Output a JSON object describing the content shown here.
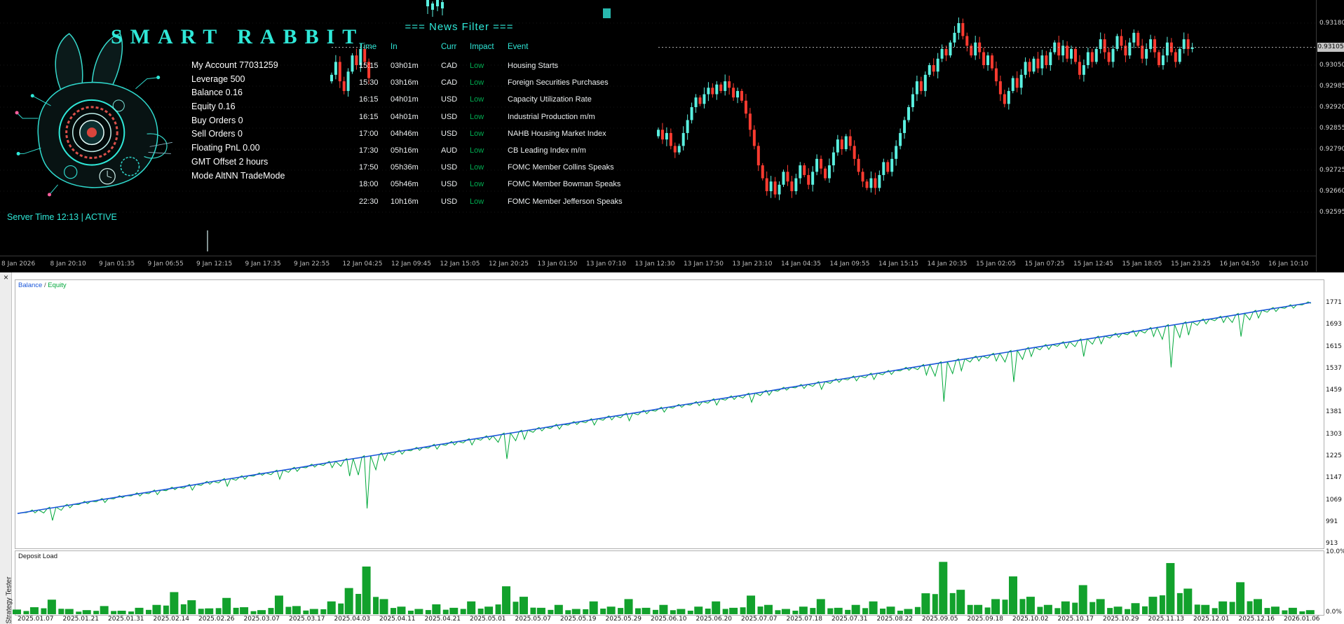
{
  "terminal": {
    "title": "SMART RABBIT",
    "server_line": "Server Time 12:13 | ACTIVE",
    "account_lines": [
      "My Account 77031259",
      "Leverage 500",
      "Balance 0.16",
      "Equity 0.16",
      "Buy Orders 0",
      "Sell Orders 0",
      "Floating PnL 0.00",
      "GMT Offset 2 hours",
      "Mode AltNN TradeMode"
    ],
    "news": {
      "header": "=== News Filter ===",
      "columns": [
        "Time",
        "In",
        "Curr",
        "Impact",
        "Event"
      ],
      "rows": [
        [
          "15:15",
          "03h01m",
          "CAD",
          "Low",
          "Housing Starts"
        ],
        [
          "15:30",
          "03h16m",
          "CAD",
          "Low",
          "Foreign Securities Purchases"
        ],
        [
          "16:15",
          "04h01m",
          "USD",
          "Low",
          "Capacity Utilization Rate"
        ],
        [
          "16:15",
          "04h01m",
          "USD",
          "Low",
          "Industrial Production m/m"
        ],
        [
          "17:00",
          "04h46m",
          "USD",
          "Low",
          "NAHB Housing Market Index"
        ],
        [
          "17:30",
          "05h16m",
          "AUD",
          "Low",
          "CB Leading Index m/m"
        ],
        [
          "17:50",
          "05h36m",
          "USD",
          "Low",
          "FOMC Member Collins Speaks"
        ],
        [
          "18:00",
          "05h46m",
          "USD",
          "Low",
          "FOMC Member Bowman Speaks"
        ],
        [
          "22:30",
          "10h16m",
          "USD",
          "Low",
          "FOMC Member Jefferson Speaks"
        ]
      ]
    }
  },
  "tester": {
    "legend": {
      "balance": "Balance",
      "separator": " / ",
      "equity": "Equity"
    },
    "deposit_label": "Deposit Load",
    "deposit_axis": [
      "10.0%",
      "0.0%"
    ],
    "tab_label": "Strategy Tester",
    "close_label": "×"
  },
  "colors": {
    "accent": "#2fe8d8",
    "news_impact_low": "#00a94f",
    "candle_up": "#5af0e0",
    "candle_down": "#ff3b30",
    "balance_line": "#1b57d9",
    "equity_line": "#00a83a",
    "deposit_bar": "#12a12c",
    "current_price_bg": "#c4c4c4"
  },
  "chart_data": [
    {
      "type": "candlestick",
      "price_top": 0.9318,
      "price_step": 0.00065,
      "price_axis_labels": [
        "0.93180",
        "0.93050",
        "0.92985",
        "0.92920",
        "0.92855",
        "0.92790",
        "0.92725",
        "0.92660",
        "0.92595"
      ],
      "current_price": "0.93105",
      "time_axis_labels": [
        "8 Jan 2026",
        "8 Jan 20:10",
        "9 Jan 01:35",
        "9 Jan 06:55",
        "9 Jan 12:15",
        "9 Jan 17:35",
        "9 Jan 22:55",
        "12 Jan 04:25",
        "12 Jan 09:45",
        "12 Jan 15:05",
        "12 Jan 20:25",
        "13 Jan 01:50",
        "13 Jan 07:10",
        "13 Jan 12:30",
        "13 Jan 17:50",
        "13 Jan 23:10",
        "14 Jan 04:35",
        "14 Jan 09:55",
        "14 Jan 15:15",
        "14 Jan 20:35",
        "15 Jan 02:05",
        "15 Jan 07:25",
        "15 Jan 12:45",
        "15 Jan 18:05",
        "15 Jan 23:25",
        "16 Jan 04:50",
        "16 Jan 10:10"
      ],
      "closes": [
        0.9285,
        0.9282,
        0.9284,
        0.928,
        0.9278,
        0.928,
        0.9284,
        0.9288,
        0.9292,
        0.9295,
        0.9293,
        0.9296,
        0.9298,
        0.9296,
        0.9299,
        0.9297,
        0.93,
        0.9298,
        0.9295,
        0.9297,
        0.9294,
        0.929,
        0.9285,
        0.928,
        0.9274,
        0.927,
        0.9266,
        0.9269,
        0.9265,
        0.9268,
        0.9272,
        0.9269,
        0.9266,
        0.927,
        0.9274,
        0.9271,
        0.9268,
        0.9272,
        0.9276,
        0.9273,
        0.927,
        0.9274,
        0.9278,
        0.9282,
        0.9279,
        0.9283,
        0.928,
        0.9276,
        0.9272,
        0.9269,
        0.9267,
        0.927,
        0.9267,
        0.9271,
        0.9275,
        0.9272,
        0.9276,
        0.928,
        0.9284,
        0.9288,
        0.9292,
        0.9296,
        0.93,
        0.9297,
        0.9302,
        0.9305,
        0.9303,
        0.9307,
        0.931,
        0.9308,
        0.9312,
        0.9315,
        0.9318,
        0.9314,
        0.9311,
        0.9308,
        0.9312,
        0.9309,
        0.9305,
        0.9308,
        0.9304,
        0.93,
        0.9296,
        0.9293,
        0.9297,
        0.9301,
        0.9298,
        0.9302,
        0.9306,
        0.9303,
        0.9307,
        0.9304,
        0.9308,
        0.9305,
        0.9309,
        0.9312,
        0.9308,
        0.9311,
        0.9307,
        0.931,
        0.9306,
        0.9302,
        0.9305,
        0.9309,
        0.9306,
        0.931,
        0.9313,
        0.9309,
        0.9306,
        0.931,
        0.9314,
        0.9311,
        0.9308,
        0.9312,
        0.9315,
        0.9311,
        0.9307,
        0.931,
        0.9313,
        0.9309,
        0.9305,
        0.9308,
        0.9312,
        0.9309,
        0.9306,
        0.931,
        0.9313,
        0.931,
        0.93105
      ],
      "ghost_closes": [
        0.9302,
        0.9306,
        0.93,
        0.9297,
        0.9303,
        0.9308,
        0.9305,
        0.931,
        0.9306,
        0.9301
      ]
    },
    {
      "type": "line",
      "title": "Balance / Equity",
      "y_ticks": [
        1771,
        1693,
        1615,
        1537,
        1459,
        1381,
        1303,
        1225,
        1147,
        1069,
        991,
        913
      ],
      "x_tick_labels": [
        "2025.01.07",
        "2025.01.21",
        "2025.01.31",
        "2025.02.14",
        "2025.02.26",
        "2025.03.07",
        "2025.03.17",
        "2025.04.03",
        "2025.04.11",
        "2025.04.21",
        "2025.05.01",
        "2025.05.07",
        "2025.05.19",
        "2025.05.29",
        "2025.06.10",
        "2025.06.20",
        "2025.07.07",
        "2025.07.18",
        "2025.07.31",
        "2025.08.22",
        "2025.09.05",
        "2025.09.18",
        "2025.10.02",
        "2025.10.17",
        "2025.10.29",
        "2025.11.13",
        "2025.12.01",
        "2025.12.16",
        "2026.01.06"
      ],
      "series": [
        {
          "name": "Balance",
          "values": [
            1020,
            1030,
            1040,
            1050,
            1061,
            1071,
            1081,
            1091,
            1101,
            1111,
            1121,
            1132,
            1142,
            1152,
            1162,
            1172,
            1182,
            1193,
            1203,
            1213,
            1223,
            1233,
            1243,
            1253,
            1264,
            1274,
            1284,
            1294,
            1304,
            1314,
            1324,
            1335,
            1345,
            1355,
            1365,
            1375,
            1385,
            1396,
            1406,
            1416,
            1426,
            1436,
            1446,
            1456,
            1467,
            1477,
            1487,
            1497,
            1507,
            1517,
            1527,
            1538,
            1548,
            1558,
            1568,
            1578,
            1588,
            1598,
            1609,
            1619,
            1629,
            1639,
            1649,
            1659,
            1669,
            1680,
            1690,
            1700,
            1710,
            1720,
            1730,
            1741,
            1751,
            1761,
            1771
          ]
        },
        {
          "name": "Equity",
          "values": [
            1020,
            1022,
            995,
            1040,
            1055,
            1059,
            1076,
            1082,
            1087,
            1105,
            1103,
            1124,
            1117,
            1142,
            1156,
            1142,
            1170,
            1185,
            1183,
            1153,
            1038,
            1208,
            1231,
            1245,
            1249,
            1264,
            1264,
            1282,
            1214,
            1284,
            1314,
            1320,
            1337,
            1335,
            1353,
            1350,
            1375,
            1381,
            1398,
            1404,
            1406,
            1426,
            1416,
            1441,
            1459,
            1465,
            1462,
            1487,
            1492,
            1497,
            1515,
            1530,
            1513,
            1418,
            1528,
            1563,
            1563,
            1488,
            1579,
            1604,
            1609,
            1579,
            1624,
            1647,
            1651,
            1650,
            1540,
            1655,
            1695,
            1700,
            1650,
            1716,
            1739,
            1751,
            1768
          ]
        }
      ]
    },
    {
      "type": "bar",
      "title": "Deposit Load",
      "ylim": [
        0,
        10
      ],
      "values": [
        0.8,
        1.2,
        2.5,
        0.9,
        0.7,
        1.4,
        0.6,
        1.1,
        1.6,
        3.8,
        2.4,
        1.0,
        2.8,
        1.2,
        0.7,
        3.2,
        1.4,
        0.9,
        2.2,
        4.5,
        8.2,
        2.6,
        1.3,
        0.9,
        1.7,
        1.1,
        2.2,
        1.3,
        4.8,
        3.0,
        1.1,
        1.6,
        0.9,
        2.2,
        1.3,
        2.6,
        1.1,
        1.6,
        0.9,
        1.3,
        2.2,
        1.1,
        3.2,
        1.6,
        0.9,
        1.3,
        2.6,
        1.1,
        1.6,
        2.2,
        1.3,
        0.9,
        3.6,
        9.0,
        4.2,
        1.6,
        2.6,
        6.5,
        3.0,
        1.6,
        2.2,
        5.0,
        2.6,
        1.3,
        1.9,
        3.0,
        8.8,
        4.4,
        1.6,
        2.2,
        5.5,
        2.6,
        1.3,
        1.1,
        0.7
      ]
    }
  ]
}
